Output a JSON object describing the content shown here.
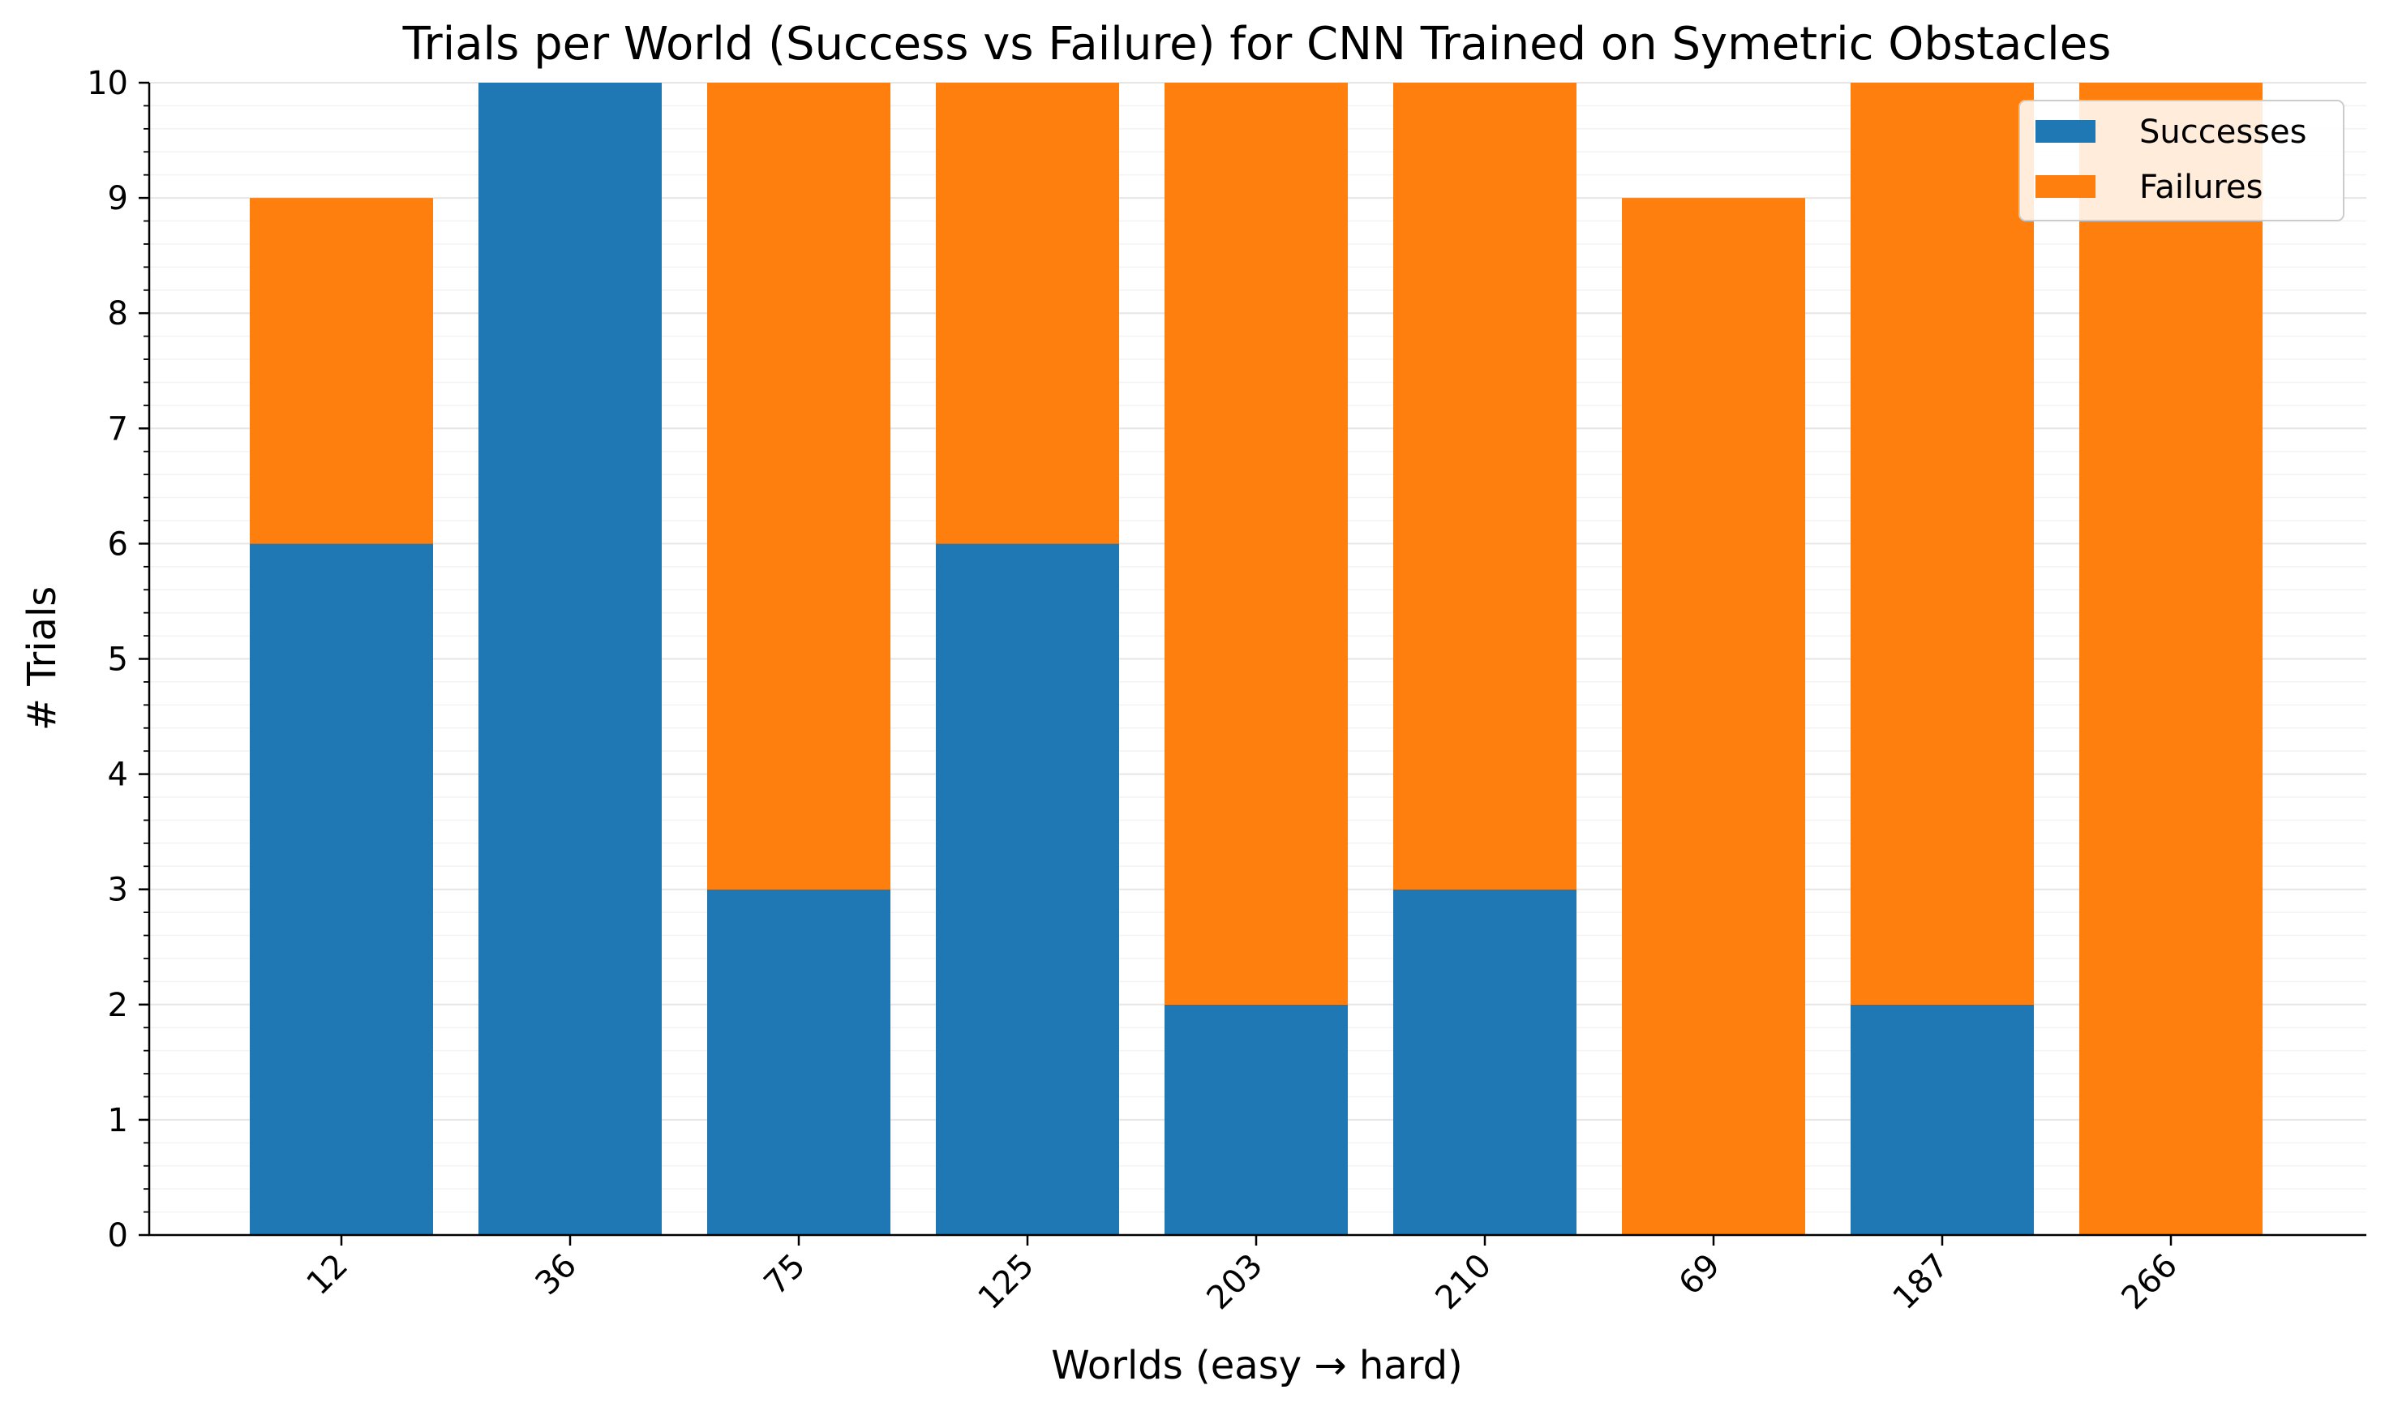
{
  "chart_data": {
    "type": "bar",
    "stacked": true,
    "title": "Trials per World (Success vs Failure) for CNN Trained on Symetric Obstacles",
    "xlabel": "Worlds (easy → hard)",
    "ylabel": "# Trials",
    "categories": [
      "12",
      "36",
      "75",
      "125",
      "203",
      "210",
      "69",
      "187",
      "266"
    ],
    "series": [
      {
        "name": "Successes",
        "color": "#1f77b4",
        "values": [
          6,
          10,
          3,
          6,
          2,
          3,
          0,
          2,
          0
        ]
      },
      {
        "name": "Failures",
        "color": "#ff7f0e",
        "values": [
          3,
          0,
          7,
          4,
          8,
          7,
          9,
          8,
          10
        ]
      }
    ],
    "ylim": [
      0,
      10
    ],
    "yticks": [
      0,
      1,
      2,
      3,
      4,
      5,
      6,
      7,
      8,
      9,
      10
    ],
    "grid": true,
    "legend_position": "top-right"
  }
}
